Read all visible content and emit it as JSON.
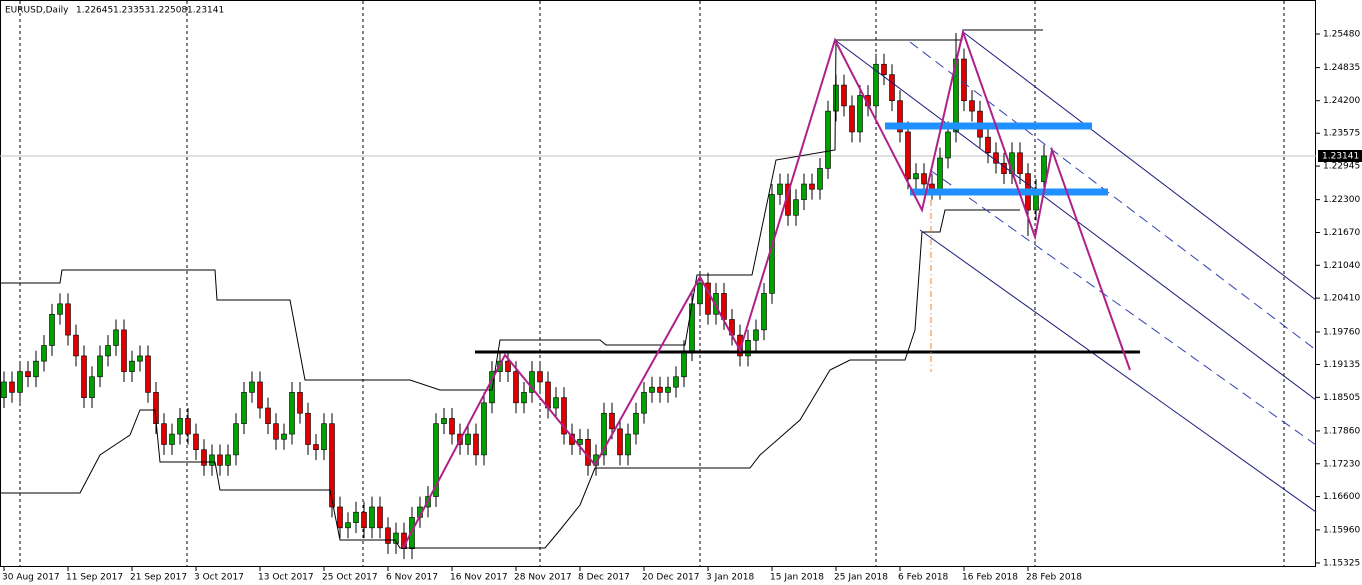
{
  "chart_data": {
    "type": "candlestick",
    "title": "EURUSD,Daily",
    "categories": [
      "30 Aug 2017",
      null,
      null,
      null,
      null,
      null,
      null,
      null,
      "11 Sep 2017",
      null,
      null,
      null,
      null,
      null,
      null,
      null,
      "21 Sep 2017",
      null,
      null,
      null,
      null,
      null,
      null,
      null,
      "3 Oct 2017",
      null,
      null,
      null,
      null,
      null,
      null,
      null,
      "13 Oct 2017",
      null,
      null,
      null,
      null,
      null,
      null,
      null,
      "25 Oct 2017",
      null,
      null,
      null,
      null,
      null,
      null,
      null,
      "6 Nov 2017",
      null,
      null,
      null,
      null,
      null,
      null,
      null,
      "16 Nov 2017",
      null,
      null,
      null,
      null,
      null,
      null,
      null,
      "28 Nov 2017",
      null,
      null,
      null,
      null,
      null,
      null,
      null,
      "8 Dec 2017",
      null,
      null,
      null,
      null,
      null,
      null,
      null,
      "20 Dec 2017",
      null,
      null,
      null,
      null,
      null,
      null,
      null,
      "3 Jan 2018",
      null,
      null,
      null,
      null,
      null,
      null,
      null,
      "15 Jan 2018",
      null,
      null,
      null,
      null,
      null,
      null,
      null,
      "25 Jan 2018",
      null,
      null,
      null,
      null,
      null,
      null,
      null,
      "6 Feb 2018",
      null,
      null,
      null,
      null,
      null,
      null,
      null,
      "16 Feb 2018",
      null,
      null,
      null,
      null,
      null,
      null,
      null,
      "28 Feb 2018",
      null,
      null
    ],
    "open": [
      1.185,
      1.188,
      1.186,
      1.19,
      1.189,
      1.192,
      1.195,
      1.201,
      1.203,
      1.197,
      1.193,
      1.185,
      1.189,
      1.193,
      1.195,
      1.198,
      1.19,
      1.192,
      1.193,
      1.186,
      1.18,
      1.176,
      1.178,
      1.181,
      1.178,
      1.175,
      1.172,
      1.174,
      1.172,
      1.174,
      1.18,
      1.186,
      1.188,
      1.183,
      1.18,
      1.177,
      1.178,
      1.186,
      1.182,
      1.176,
      1.175,
      1.18,
      1.164,
      1.16,
      1.161,
      1.163,
      1.16,
      1.164,
      1.16,
      1.157,
      1.159,
      1.156,
      1.162,
      1.164,
      1.166,
      1.18,
      1.181,
      1.178,
      1.176,
      1.178,
      1.174,
      1.184,
      1.19,
      1.192,
      1.19,
      1.184,
      1.186,
      1.19,
      1.188,
      1.183,
      1.185,
      1.178,
      1.176,
      1.177,
      1.172,
      1.174,
      1.182,
      1.179,
      1.174,
      1.178,
      1.182,
      1.186,
      1.187,
      1.186,
      1.187,
      1.189,
      1.194,
      1.203,
      1.207,
      1.201,
      1.205,
      1.2,
      1.197,
      1.193,
      1.196,
      1.198,
      1.205,
      1.224,
      1.226,
      1.22,
      1.223,
      1.226,
      1.225,
      1.229,
      1.24,
      1.245,
      1.241,
      1.236,
      1.243,
      1.241,
      1.249,
      1.247,
      1.242,
      1.236,
      1.227,
      1.228,
      1.226,
      1.225,
      1.231,
      1.236,
      1.25,
      1.242,
      1.24,
      1.235,
      1.232,
      1.23,
      1.228,
      1.232,
      1.228,
      1.221,
      1.22645
    ],
    "high": [
      1.19,
      1.19,
      1.192,
      1.192,
      1.194,
      1.197,
      1.203,
      1.205,
      1.205,
      1.199,
      1.195,
      1.191,
      1.195,
      1.197,
      1.2,
      1.2,
      1.194,
      1.195,
      1.195,
      1.188,
      1.182,
      1.18,
      1.183,
      1.183,
      1.18,
      1.177,
      1.176,
      1.176,
      1.176,
      1.182,
      1.188,
      1.19,
      1.19,
      1.185,
      1.182,
      1.18,
      1.188,
      1.188,
      1.184,
      1.178,
      1.182,
      1.182,
      1.166,
      1.163,
      1.165,
      1.165,
      1.166,
      1.166,
      1.162,
      1.161,
      1.161,
      1.164,
      1.166,
      1.168,
      1.182,
      1.183,
      1.183,
      1.18,
      1.18,
      1.18,
      1.186,
      1.192,
      1.194,
      1.194,
      1.192,
      1.188,
      1.192,
      1.192,
      1.19,
      1.187,
      1.187,
      1.18,
      1.179,
      1.179,
      1.176,
      1.184,
      1.184,
      1.181,
      1.18,
      1.184,
      1.188,
      1.189,
      1.189,
      1.189,
      1.191,
      1.196,
      1.205,
      1.209,
      1.209,
      1.207,
      1.207,
      1.202,
      1.199,
      1.198,
      1.2,
      1.207,
      1.226,
      1.228,
      1.228,
      1.225,
      1.228,
      1.228,
      1.231,
      1.242,
      1.247,
      1.247,
      1.243,
      1.245,
      1.245,
      1.251,
      1.251,
      1.249,
      1.244,
      1.238,
      1.23,
      1.23,
      1.228,
      1.233,
      1.238,
      1.255,
      1.252,
      1.244,
      1.242,
      1.237,
      1.234,
      1.232,
      1.234,
      1.234,
      1.23,
      1.227,
      1.23353
    ],
    "low": [
      1.183,
      1.184,
      1.184,
      1.187,
      1.187,
      1.19,
      1.193,
      1.199,
      1.195,
      1.191,
      1.183,
      1.183,
      1.187,
      1.191,
      1.193,
      1.188,
      1.188,
      1.19,
      1.184,
      1.178,
      1.174,
      1.174,
      1.176,
      1.176,
      1.173,
      1.17,
      1.17,
      1.17,
      1.17,
      1.172,
      1.178,
      1.184,
      1.181,
      1.178,
      1.175,
      1.175,
      1.176,
      1.18,
      1.174,
      1.173,
      1.173,
      1.162,
      1.158,
      1.158,
      1.159,
      1.158,
      1.158,
      1.158,
      1.155,
      1.155,
      1.154,
      1.154,
      1.16,
      1.162,
      1.164,
      1.178,
      1.176,
      1.174,
      1.174,
      1.172,
      1.172,
      1.182,
      1.188,
      1.188,
      1.182,
      1.182,
      1.184,
      1.186,
      1.181,
      1.181,
      1.176,
      1.174,
      1.174,
      1.17,
      1.17,
      1.172,
      1.177,
      1.172,
      1.172,
      1.176,
      1.18,
      1.184,
      1.184,
      1.184,
      1.185,
      1.187,
      1.192,
      1.201,
      1.199,
      1.199,
      1.198,
      1.195,
      1.191,
      1.191,
      1.194,
      1.196,
      1.203,
      1.222,
      1.218,
      1.218,
      1.221,
      1.223,
      1.223,
      1.227,
      1.238,
      1.239,
      1.234,
      1.234,
      1.239,
      1.239,
      1.245,
      1.24,
      1.234,
      1.225,
      1.225,
      1.224,
      1.223,
      1.223,
      1.229,
      1.234,
      1.24,
      1.238,
      1.233,
      1.23,
      1.228,
      1.226,
      1.226,
      1.226,
      1.216,
      1.219,
      1.22508
    ],
    "close": [
      1.188,
      1.186,
      1.19,
      1.189,
      1.192,
      1.195,
      1.201,
      1.203,
      1.197,
      1.193,
      1.185,
      1.189,
      1.193,
      1.195,
      1.198,
      1.19,
      1.192,
      1.193,
      1.186,
      1.18,
      1.176,
      1.178,
      1.181,
      1.178,
      1.175,
      1.172,
      1.174,
      1.172,
      1.174,
      1.18,
      1.186,
      1.188,
      1.183,
      1.18,
      1.177,
      1.178,
      1.186,
      1.182,
      1.176,
      1.175,
      1.18,
      1.164,
      1.16,
      1.161,
      1.163,
      1.16,
      1.164,
      1.16,
      1.157,
      1.159,
      1.156,
      1.162,
      1.164,
      1.166,
      1.18,
      1.181,
      1.178,
      1.176,
      1.178,
      1.174,
      1.184,
      1.19,
      1.192,
      1.19,
      1.184,
      1.186,
      1.19,
      1.188,
      1.183,
      1.185,
      1.178,
      1.176,
      1.177,
      1.172,
      1.174,
      1.182,
      1.179,
      1.174,
      1.178,
      1.182,
      1.186,
      1.187,
      1.186,
      1.187,
      1.189,
      1.194,
      1.203,
      1.207,
      1.201,
      1.205,
      1.2,
      1.197,
      1.193,
      1.196,
      1.198,
      1.205,
      1.224,
      1.226,
      1.22,
      1.223,
      1.226,
      1.225,
      1.229,
      1.24,
      1.245,
      1.241,
      1.236,
      1.243,
      1.241,
      1.249,
      1.247,
      1.242,
      1.236,
      1.227,
      1.228,
      1.226,
      1.225,
      1.231,
      1.236,
      1.25,
      1.242,
      1.24,
      1.235,
      1.232,
      1.23,
      1.228,
      1.232,
      1.228,
      1.221,
      1.225,
      1.23141
    ],
    "up_color": "#00a000",
    "down_color": "#e00000",
    "ylim": [
      1.26133,
      1.15248
    ],
    "yticks": [
      {
        "value": 1.2548,
        "label": "1.25480"
      },
      {
        "value": 1.24835,
        "label": "1.24835"
      },
      {
        "value": 1.242,
        "label": "1.24200"
      },
      {
        "value": 1.23575,
        "label": "1.23575"
      },
      {
        "value": 1.22945,
        "label": "1.22945"
      },
      {
        "value": 1.223,
        "label": "1.22300"
      },
      {
        "value": 1.2167,
        "label": "1.21670"
      },
      {
        "value": 1.2104,
        "label": "1.21040"
      },
      {
        "value": 1.2041,
        "label": "1.20410"
      },
      {
        "value": 1.1976,
        "label": "1.19760"
      },
      {
        "value": 1.19135,
        "label": "1.19135"
      },
      {
        "value": 1.18505,
        "label": "1.18505"
      },
      {
        "value": 1.1786,
        "label": "1.17860"
      },
      {
        "value": 1.1723,
        "label": "1.17230"
      },
      {
        "value": 1.166,
        "label": "1.16600"
      },
      {
        "value": 1.1596,
        "label": "1.15960"
      },
      {
        "value": 1.15325,
        "label": "1.15325"
      }
    ]
  }
}
